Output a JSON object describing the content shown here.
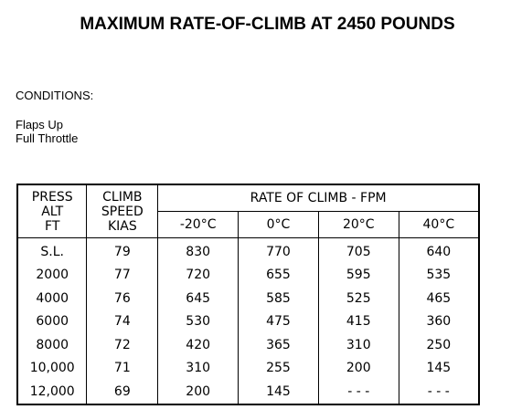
{
  "title": "MAXIMUM RATE-OF-CLIMB AT 2450 POUNDS",
  "conditions": {
    "heading": "CONDITIONS:",
    "items": [
      "Flaps Up",
      "Full Throttle"
    ]
  },
  "table": {
    "headers": {
      "press_alt": [
        "PRESS",
        "ALT",
        "FT"
      ],
      "climb_speed": [
        "CLIMB",
        "SPEED",
        "KIAS"
      ],
      "rate_of_climb": "RATE OF CLIMB - FPM",
      "temperatures": [
        "-20°C",
        "0°C",
        "20°C",
        "40°C"
      ]
    },
    "rows": [
      {
        "alt": "S.L.",
        "kias": "79",
        "roc": [
          "830",
          "770",
          "705",
          "640"
        ]
      },
      {
        "alt": "2000",
        "kias": "77",
        "roc": [
          "720",
          "655",
          "595",
          "535"
        ]
      },
      {
        "alt": "4000",
        "kias": "76",
        "roc": [
          "645",
          "585",
          "525",
          "465"
        ]
      },
      {
        "alt": "6000",
        "kias": "74",
        "roc": [
          "530",
          "475",
          "415",
          "360"
        ]
      },
      {
        "alt": "8000",
        "kias": "72",
        "roc": [
          "420",
          "365",
          "310",
          "250"
        ]
      },
      {
        "alt": "10,000",
        "kias": "71",
        "roc": [
          "310",
          "255",
          "200",
          "145"
        ]
      },
      {
        "alt": "12,000",
        "kias": "69",
        "roc": [
          "200",
          "145",
          "- - -",
          "- - -"
        ]
      }
    ]
  }
}
